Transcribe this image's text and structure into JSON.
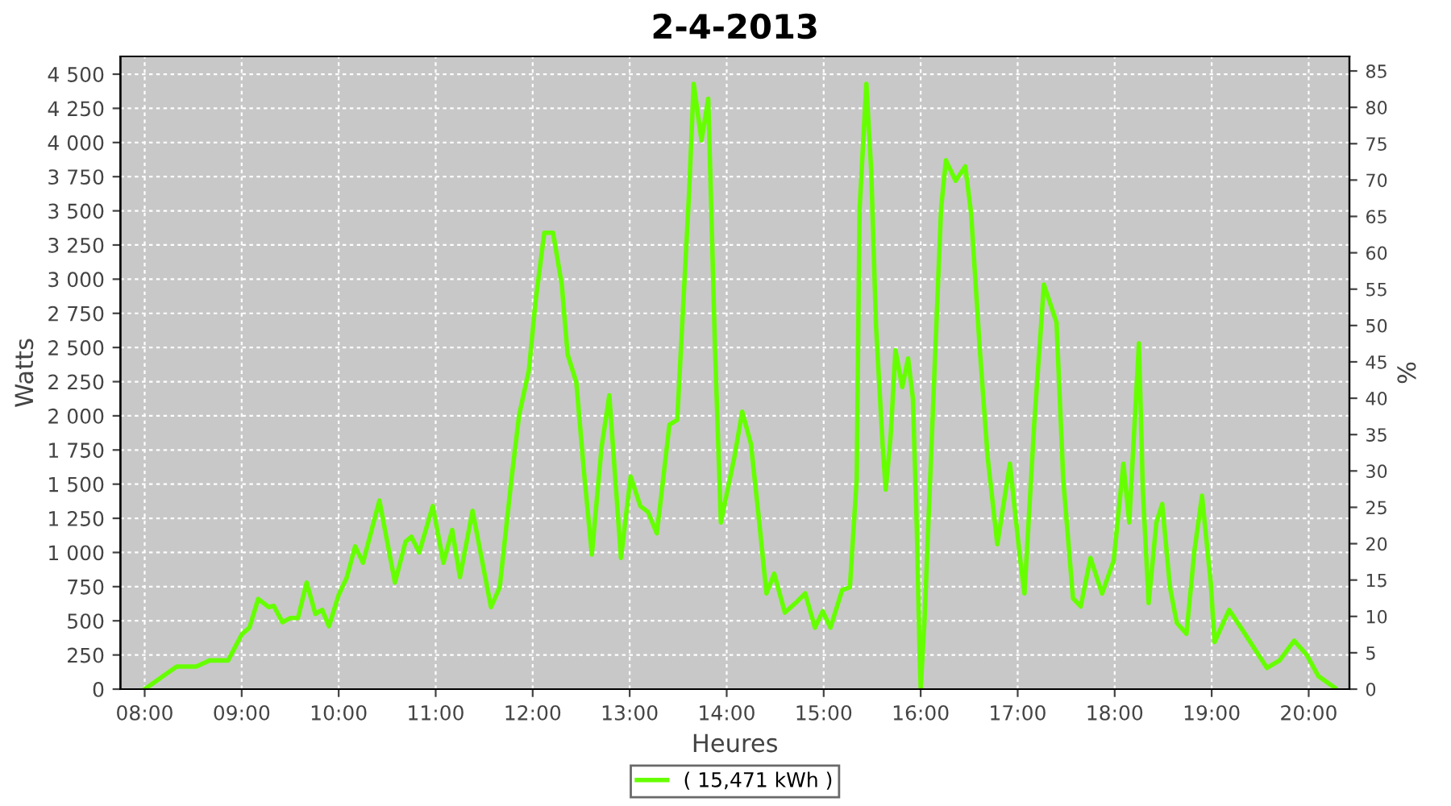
{
  "chart_data": {
    "type": "line",
    "title": "2-4-2013",
    "xlabel": "Heures",
    "ylabel": "Watts",
    "y2label": "%",
    "xlim": [
      7.75,
      20.42
    ],
    "xticks": [
      {
        "value": 8,
        "label": "08:00"
      },
      {
        "value": 9,
        "label": "09:00"
      },
      {
        "value": 10,
        "label": "10:00"
      },
      {
        "value": 11,
        "label": "11:00"
      },
      {
        "value": 12,
        "label": "12:00"
      },
      {
        "value": 13,
        "label": "13:00"
      },
      {
        "value": 14,
        "label": "14:00"
      },
      {
        "value": 15,
        "label": "15:00"
      },
      {
        "value": 16,
        "label": "16:00"
      },
      {
        "value": 17,
        "label": "17:00"
      },
      {
        "value": 18,
        "label": "18:00"
      },
      {
        "value": 19,
        "label": "19:00"
      },
      {
        "value": 20,
        "label": "20:00"
      }
    ],
    "ylim": [
      0,
      4630
    ],
    "yticks": [
      0,
      250,
      500,
      750,
      {
        "value": 1000,
        "label": "1 000"
      },
      {
        "value": 1250,
        "label": "1 250"
      },
      {
        "value": 1500,
        "label": "1 500"
      },
      {
        "value": 1750,
        "label": "1 750"
      },
      {
        "value": 2000,
        "label": "2 000"
      },
      {
        "value": 2250,
        "label": "2 250"
      },
      {
        "value": 2500,
        "label": "2 500"
      },
      {
        "value": 2750,
        "label": "2 750"
      },
      {
        "value": 3000,
        "label": "3 000"
      },
      {
        "value": 3250,
        "label": "3 250"
      },
      {
        "value": 3500,
        "label": "3 500"
      },
      {
        "value": 3750,
        "label": "3 750"
      },
      {
        "value": 4000,
        "label": "4 000"
      },
      {
        "value": 4250,
        "label": "4 250"
      },
      {
        "value": 4500,
        "label": "4 500"
      }
    ],
    "y2lim": [
      0,
      87
    ],
    "y2ticks": [
      0,
      5,
      10,
      15,
      20,
      25,
      30,
      35,
      40,
      45,
      50,
      55,
      60,
      65,
      70,
      75,
      80,
      85
    ],
    "grid": true,
    "legend": "bottom",
    "line_style": "solid",
    "series": [
      {
        "name": "( 15,471 kWh )",
        "color": "#66ff00",
        "x": [
          8.0,
          8.22,
          8.33,
          8.53,
          8.67,
          8.86,
          9.0,
          9.08,
          9.17,
          9.28,
          9.33,
          9.42,
          9.5,
          9.58,
          9.67,
          9.76,
          9.83,
          9.9,
          10.0,
          10.08,
          10.17,
          10.25,
          10.42,
          10.58,
          10.69,
          10.75,
          10.83,
          10.97,
          11.08,
          11.17,
          11.25,
          11.38,
          11.57,
          11.66,
          11.78,
          11.86,
          11.96,
          12.03,
          12.12,
          12.21,
          12.3,
          12.36,
          12.45,
          12.53,
          12.61,
          12.71,
          12.79,
          12.91,
          13.01,
          13.11,
          13.19,
          13.28,
          13.41,
          13.49,
          13.61,
          13.66,
          13.74,
          13.81,
          13.88,
          13.94,
          14.03,
          14.08,
          14.16,
          14.25,
          14.33,
          14.41,
          14.49,
          14.6,
          14.71,
          14.81,
          14.91,
          14.99,
          15.07,
          15.19,
          15.27,
          15.34,
          15.37,
          15.44,
          15.49,
          15.54,
          15.61,
          15.64,
          15.69,
          15.74,
          15.81,
          15.87,
          15.92,
          15.96,
          15.99,
          16.0,
          16.04,
          16.12,
          16.21,
          16.26,
          16.36,
          16.46,
          16.52,
          16.61,
          16.69,
          16.79,
          16.92,
          17.02,
          17.07,
          17.17,
          17.27,
          17.4,
          17.47,
          17.57,
          17.65,
          17.75,
          17.87,
          17.99,
          18.09,
          18.15,
          18.25,
          18.29,
          18.35,
          18.43,
          18.49,
          18.57,
          18.64,
          18.74,
          18.82,
          18.9,
          18.99,
          19.03,
          19.18,
          19.32,
          19.57,
          19.7,
          19.85,
          19.98,
          20.1,
          20.27
        ],
        "values": [
          0,
          110,
          165,
          165,
          210,
          210,
          400,
          450,
          660,
          600,
          610,
          490,
          520,
          520,
          780,
          550,
          580,
          460,
          690,
          810,
          1045,
          925,
          1380,
          780,
          1080,
          1115,
          1000,
          1340,
          925,
          1165,
          820,
          1305,
          600,
          745,
          1530,
          2005,
          2330,
          2840,
          3340,
          3340,
          2960,
          2450,
          2245,
          1580,
          985,
          1770,
          2150,
          960,
          1555,
          1340,
          1295,
          1140,
          1935,
          1970,
          3600,
          4430,
          4015,
          4320,
          2480,
          1220,
          1530,
          1700,
          2030,
          1795,
          1260,
          700,
          845,
          560,
          630,
          700,
          450,
          570,
          450,
          725,
          745,
          1530,
          3515,
          4430,
          3790,
          2650,
          1755,
          1460,
          1850,
          2480,
          2210,
          2420,
          2125,
          1175,
          225,
          10,
          510,
          1935,
          3515,
          3870,
          3720,
          3825,
          3480,
          2480,
          1700,
          1060,
          1650,
          985,
          700,
          1935,
          2960,
          2685,
          1530,
          665,
          605,
          960,
          700,
          940,
          1650,
          1220,
          2530,
          1460,
          630,
          1220,
          1355,
          745,
          485,
          405,
          1000,
          1415,
          780,
          345,
          580,
          430,
          155,
          210,
          355,
          250,
          95,
          10
        ]
      }
    ]
  }
}
